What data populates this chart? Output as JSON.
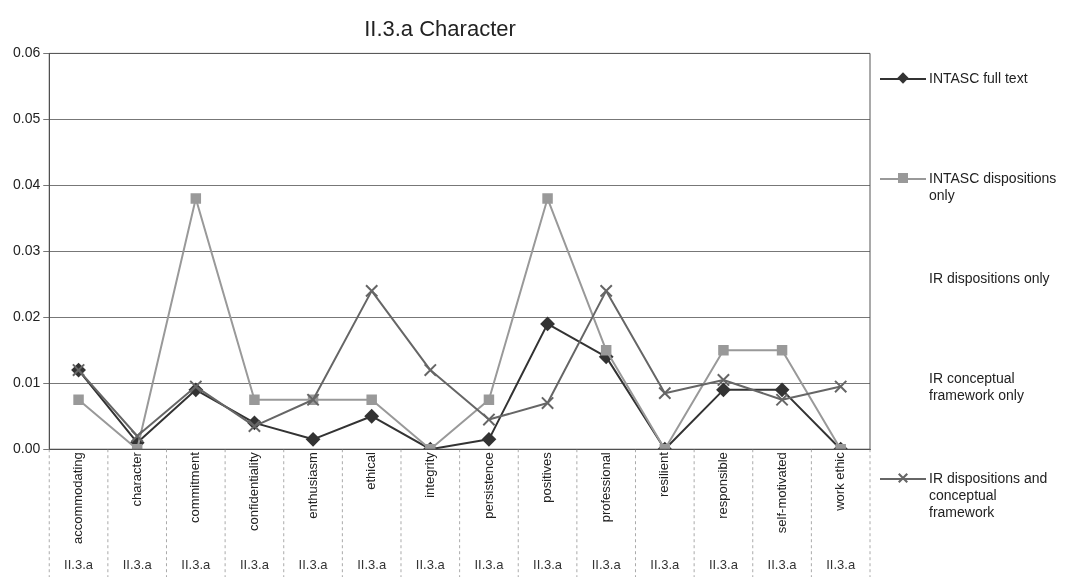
{
  "chart_data": {
    "type": "line",
    "title": "II.3.a Character",
    "categories": [
      "accommodating",
      "character",
      "commitment",
      "confidentiality",
      "enthusiasm",
      "ethical",
      "integrity",
      "persistence",
      "positives",
      "professional",
      "resilient",
      "responsible",
      "self-motivated",
      "work ethic"
    ],
    "series": [
      {
        "name": "INTASC full text",
        "color": "#333333",
        "marker": "diamond",
        "values": [
          0.012,
          0.001,
          0.009,
          0.004,
          0.0015,
          0.005,
          0.0,
          0.0015,
          0.019,
          0.014,
          0.0,
          0.009,
          0.009,
          0.0
        ]
      },
      {
        "name": "INTASC dispositions only",
        "color": "#999999",
        "marker": "square",
        "values": [
          0.0075,
          0.0,
          0.038,
          0.0075,
          0.0075,
          0.0075,
          0.0,
          0.0075,
          0.038,
          0.015,
          0.0,
          0.015,
          0.015,
          0.0
        ]
      },
      {
        "name": "IR dispositions only",
        "marker": "none",
        "values": [
          null,
          null,
          null,
          null,
          null,
          null,
          null,
          null,
          null,
          null,
          null,
          null,
          null,
          null
        ]
      },
      {
        "name": "IR conceptual framework only",
        "marker": "none",
        "values": [
          null,
          null,
          null,
          null,
          null,
          null,
          null,
          null,
          null,
          null,
          null,
          null,
          null,
          null
        ]
      },
      {
        "name": "IR dispositions and conceptual framework",
        "color": "#666666",
        "marker": "cross",
        "values": [
          0.012,
          0.002,
          0.0095,
          0.0035,
          0.0075,
          0.024,
          0.012,
          0.0045,
          0.007,
          0.024,
          0.0085,
          0.0105,
          0.0075,
          0.0095
        ]
      }
    ],
    "annotations": [
      "II.3.a",
      "II.3.a",
      "II.3.a",
      "II.3.a",
      "II.3.a",
      "II.3.a",
      "II.3.a",
      "II.3.a",
      "II.3.a",
      "II.3.a",
      "II.3.a",
      "II.3.a",
      "II.3.a",
      "II.3.a"
    ],
    "ylim": [
      0,
      0.06
    ],
    "yticks": [
      {
        "value": 0,
        "label": "0.00"
      },
      {
        "value": 0.01,
        "label": "0.01"
      },
      {
        "value": 0.02,
        "label": "0.02"
      },
      {
        "value": 0.03,
        "label": "0.03"
      },
      {
        "value": 0.04,
        "label": "0.04"
      },
      {
        "value": 0.05,
        "label": "0.05"
      },
      {
        "value": 0.06,
        "label": "0.06"
      }
    ],
    "grid": "y",
    "legend": "right",
    "line_style": "solid"
  }
}
